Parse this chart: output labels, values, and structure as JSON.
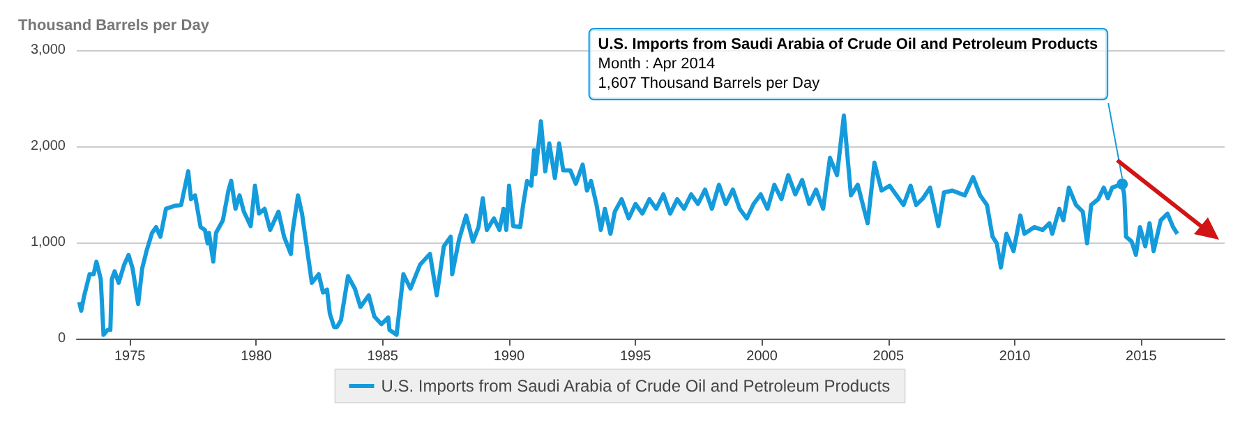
{
  "chart_data": {
    "type": "line",
    "ylabel": "Thousand Barrels per Day",
    "xlim": [
      1972.9,
      2018.3
    ],
    "xticks": [
      1975,
      1980,
      1985,
      1990,
      1995,
      2000,
      2005,
      2010,
      2015
    ],
    "ylim": [
      0,
      3000
    ],
    "yticks": [
      0,
      {
        "value": 1000,
        "label": "1,000"
      },
      {
        "value": 2000,
        "label": "2,000"
      },
      {
        "value": 3000,
        "label": "3,000"
      }
    ],
    "grid": "y",
    "legend": "bottom",
    "marker": "none",
    "line_style": "solid",
    "series": [
      {
        "name": "U.S. Imports from Saudi Arabia of Crude Oil and Petroleum Products",
        "color": "#149bdc",
        "x": [
          1973.0,
          1973.08,
          1973.19,
          1973.41,
          1973.57,
          1973.68,
          1973.85,
          1973.96,
          1974.12,
          1974.23,
          1974.29,
          1974.4,
          1974.56,
          1974.78,
          1974.95,
          1975.11,
          1975.33,
          1975.49,
          1975.66,
          1975.88,
          1976.04,
          1976.21,
          1976.43,
          1976.76,
          1977.03,
          1977.31,
          1977.42,
          1977.58,
          1977.8,
          1977.97,
          1978.08,
          1978.13,
          1978.3,
          1978.41,
          1978.68,
          1978.9,
          1979.01,
          1979.18,
          1979.34,
          1979.51,
          1979.78,
          1979.95,
          1980.11,
          1980.33,
          1980.55,
          1980.88,
          1981.1,
          1981.37,
          1981.43,
          1981.65,
          1981.81,
          1982.2,
          1982.47,
          1982.64,
          1982.8,
          1982.91,
          1983.08,
          1983.19,
          1983.35,
          1983.63,
          1983.9,
          1984.12,
          1984.45,
          1984.67,
          1984.95,
          1985.22,
          1985.27,
          1985.55,
          1985.82,
          1986.1,
          1986.48,
          1986.87,
          1987.14,
          1987.42,
          1987.69,
          1987.75,
          1988.02,
          1988.3,
          1988.57,
          1988.79,
          1988.96,
          1989.12,
          1989.4,
          1989.62,
          1989.78,
          1989.89,
          1990.0,
          1990.16,
          1990.44,
          1990.55,
          1990.71,
          1990.88,
          1990.99,
          1991.04,
          1991.26,
          1991.43,
          1991.59,
          1991.81,
          1991.98,
          1992.14,
          1992.42,
          1992.64,
          1992.91,
          1993.08,
          1993.24,
          1993.46,
          1993.63,
          1993.79,
          1994.01,
          1994.18,
          1994.45,
          1994.73,
          1995.0,
          1995.27,
          1995.55,
          1995.82,
          1996.1,
          1996.37,
          1996.65,
          1996.92,
          1997.2,
          1997.47,
          1997.75,
          1998.02,
          1998.3,
          1998.57,
          1998.85,
          1999.12,
          1999.4,
          1999.67,
          1999.95,
          2000.22,
          2000.49,
          2000.77,
          2001.04,
          2001.32,
          2001.59,
          2001.87,
          2002.14,
          2002.42,
          2002.69,
          2002.97,
          2003.24,
          2003.52,
          2003.79,
          2004.18,
          2004.45,
          2004.73,
          2005.05,
          2005.6,
          2005.88,
          2006.1,
          2006.37,
          2006.65,
          2006.98,
          2007.2,
          2007.53,
          2008.02,
          2008.35,
          2008.63,
          2008.9,
          2009.12,
          2009.29,
          2009.45,
          2009.67,
          2009.95,
          2010.22,
          2010.38,
          2010.77,
          2011.1,
          2011.37,
          2011.48,
          2011.76,
          2011.92,
          2012.14,
          2012.42,
          2012.69,
          2012.86,
          2013.02,
          2013.3,
          2013.52,
          2013.68,
          2013.85,
          2014.25,
          2014.33,
          2014.4,
          2014.62,
          2014.79,
          2014.95,
          2015.16,
          2015.33,
          2015.49,
          2015.77,
          2016.04,
          2016.26,
          2016.43
        ],
        "values": [
          380,
          290,
          440,
          670,
          670,
          800,
          620,
          40,
          90,
          90,
          620,
          700,
          580,
          770,
          870,
          730,
          360,
          730,
          910,
          1100,
          1160,
          1060,
          1350,
          1380,
          1390,
          1740,
          1450,
          1490,
          1160,
          1130,
          990,
          1100,
          800,
          1100,
          1230,
          1540,
          1640,
          1350,
          1490,
          1320,
          1170,
          1590,
          1300,
          1350,
          1130,
          1320,
          1060,
          880,
          1100,
          1490,
          1300,
          580,
          670,
          480,
          510,
          260,
          120,
          120,
          190,
          650,
          520,
          330,
          450,
          230,
          150,
          220,
          90,
          40,
          670,
          520,
          770,
          880,
          450,
          960,
          1060,
          670,
          1030,
          1280,
          1010,
          1160,
          1460,
          1130,
          1250,
          1130,
          1350,
          1130,
          1590,
          1170,
          1160,
          1380,
          1640,
          1590,
          1960,
          1710,
          2260,
          1740,
          2030,
          1670,
          2030,
          1750,
          1750,
          1610,
          1810,
          1540,
          1640,
          1390,
          1130,
          1350,
          1090,
          1320,
          1450,
          1250,
          1400,
          1300,
          1450,
          1350,
          1500,
          1300,
          1450,
          1350,
          1500,
          1400,
          1550,
          1350,
          1600,
          1400,
          1550,
          1350,
          1250,
          1400,
          1500,
          1350,
          1600,
          1450,
          1700,
          1500,
          1650,
          1400,
          1550,
          1350,
          1880,
          1700,
          2320,
          1490,
          1600,
          1200,
          1830,
          1540,
          1590,
          1390,
          1590,
          1390,
          1460,
          1570,
          1170,
          1520,
          1540,
          1490,
          1680,
          1490,
          1390,
          1060,
          990,
          740,
          1090,
          910,
          1280,
          1090,
          1160,
          1130,
          1200,
          1090,
          1350,
          1230,
          1570,
          1390,
          1320,
          990,
          1390,
          1450,
          1570,
          1460,
          1570,
          1610,
          1490,
          1060,
          1010,
          870,
          1160,
          960,
          1200,
          910,
          1230,
          1300,
          1160,
          1090
        ]
      }
    ],
    "annotations": [
      {
        "text": "U.S. Imports from Saudi Arabia of Crude Oil and Petroleum Products\nMonth : Apr 2014\n1,607 Thousand Barrels per Day",
        "x": 2014.25,
        "y": 1607
      }
    ]
  }
}
